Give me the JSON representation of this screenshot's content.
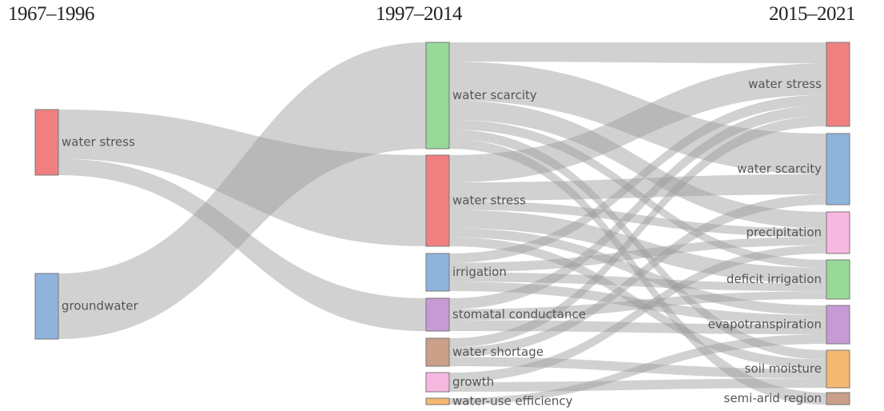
{
  "columns": [
    {
      "title": "1967–1996"
    },
    {
      "title": "1997–2014"
    },
    {
      "title": "2015–2021"
    }
  ],
  "nodes": [
    {
      "id": "a_ws",
      "col": 0,
      "label": "water stress",
      "color": "#f08080"
    },
    {
      "id": "a_gw",
      "col": 0,
      "label": "groundwater",
      "color": "#8fb4dc"
    },
    {
      "id": "b_wsc",
      "col": 1,
      "label": "water scarcity",
      "color": "#98d898"
    },
    {
      "id": "b_ws",
      "col": 1,
      "label": "water stress",
      "color": "#f08080"
    },
    {
      "id": "b_irr",
      "col": 1,
      "label": "irrigation",
      "color": "#8fb4dc"
    },
    {
      "id": "b_sc",
      "col": 1,
      "label": "stomatal conductance",
      "color": "#c79ad6"
    },
    {
      "id": "b_wsh",
      "col": 1,
      "label": "water shortage",
      "color": "#caa088"
    },
    {
      "id": "b_gr",
      "col": 1,
      "label": "growth",
      "color": "#f7b8e0"
    },
    {
      "id": "b_wue",
      "col": 1,
      "label": "water-use efficiency",
      "color": "#f5b870"
    },
    {
      "id": "c_ws",
      "col": 2,
      "label": "water stress",
      "color": "#f08080"
    },
    {
      "id": "c_wsc",
      "col": 2,
      "label": "water scarcity",
      "color": "#8fb4dc"
    },
    {
      "id": "c_pr",
      "col": 2,
      "label": "precipitation",
      "color": "#f7b8e0"
    },
    {
      "id": "c_di",
      "col": 2,
      "label": "deficit irrigation",
      "color": "#98d898"
    },
    {
      "id": "c_et",
      "col": 2,
      "label": "evapotranspiration",
      "color": "#c79ad6"
    },
    {
      "id": "c_sm",
      "col": 2,
      "label": "soil moisture",
      "color": "#f5b870"
    },
    {
      "id": "c_sar",
      "col": 2,
      "label": "semi-arid region",
      "color": "#caa088"
    }
  ],
  "links": [
    {
      "source": "a_ws",
      "target": "b_ws",
      "value": 6
    },
    {
      "source": "a_ws",
      "target": "b_sc",
      "value": 2
    },
    {
      "source": "a_gw",
      "target": "b_wsc",
      "value": 8
    },
    {
      "source": "b_wsc",
      "target": "c_ws",
      "value": 2
    },
    {
      "source": "b_wsc",
      "target": "c_wsc",
      "value": 4
    },
    {
      "source": "b_wsc",
      "target": "c_pr",
      "value": 2
    },
    {
      "source": "b_wsc",
      "target": "c_di",
      "value": 1
    },
    {
      "source": "b_wsc",
      "target": "c_sm",
      "value": 1
    },
    {
      "source": "b_wsc",
      "target": "c_sar",
      "value": 1
    },
    {
      "source": "b_ws",
      "target": "c_ws",
      "value": 3
    },
    {
      "source": "b_ws",
      "target": "c_wsc",
      "value": 2
    },
    {
      "source": "b_ws",
      "target": "c_pr",
      "value": 1
    },
    {
      "source": "b_ws",
      "target": "c_di",
      "value": 2
    },
    {
      "source": "b_ws",
      "target": "c_et",
      "value": 1
    },
    {
      "source": "b_ws",
      "target": "c_sm",
      "value": 1
    },
    {
      "source": "b_irr",
      "target": "c_ws",
      "value": 1
    },
    {
      "source": "b_irr",
      "target": "c_pr",
      "value": 1
    },
    {
      "source": "b_irr",
      "target": "c_di",
      "value": 1
    },
    {
      "source": "b_irr",
      "target": "c_et",
      "value": 1
    },
    {
      "source": "b_sc",
      "target": "c_ws",
      "value": 1
    },
    {
      "source": "b_sc",
      "target": "c_di",
      "value": 1
    },
    {
      "source": "b_sc",
      "target": "c_et",
      "value": 1
    },
    {
      "source": "b_wsh",
      "target": "c_ws",
      "value": 1
    },
    {
      "source": "b_wsh",
      "target": "c_wsc",
      "value": 1
    },
    {
      "source": "b_wsh",
      "target": "c_sm",
      "value": 1
    },
    {
      "source": "b_gr",
      "target": "c_pr",
      "value": 1
    },
    {
      "source": "b_gr",
      "target": "c_sm",
      "value": 1
    },
    {
      "source": "b_wue",
      "target": "c_et",
      "value": 1
    }
  ],
  "colors": {
    "link": "#9a9a9a",
    "node_border": "#777777",
    "label": "#555555"
  }
}
